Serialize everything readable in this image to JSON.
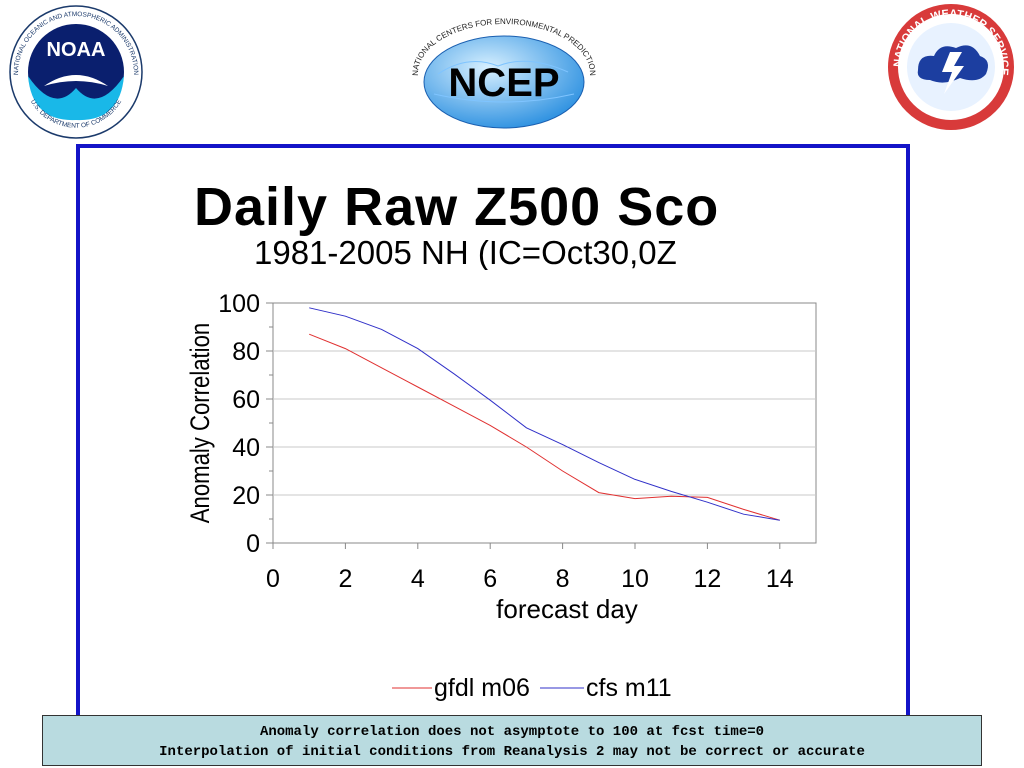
{
  "logos": {
    "noaa": {
      "name": "NOAA",
      "ring_text": "NATIONAL OCEANIC AND ATMOSPHERIC ADMINISTRATION",
      "bottom_text": "U.S. DEPARTMENT OF COMMERCE"
    },
    "ncep": {
      "name": "NCEP",
      "ring_text": "NATIONAL CENTERS FOR ENVIRONMENTAL PREDICTION"
    },
    "nws": {
      "ring_text": "NATIONAL WEATHER SERVICE"
    }
  },
  "colors": {
    "frame": "#1414c8",
    "note_bg": "#b9dbe0",
    "gfdl": "#e03030",
    "cfs": "#3030c8"
  },
  "chart_data": {
    "type": "line",
    "title": "Daily Raw Z500 Sco",
    "subtitle": "1981-2005 NH (IC=Oct30,0Z",
    "xlabel": "forecast day",
    "ylabel": "Anomaly Correlation",
    "xlim": [
      0,
      15
    ],
    "ylim": [
      0,
      100
    ],
    "x_ticks": [
      0,
      2,
      4,
      6,
      8,
      10,
      12,
      14
    ],
    "y_ticks": [
      0,
      20,
      40,
      60,
      80,
      100
    ],
    "grid": "horizontal",
    "legend_position": "bottom",
    "x": [
      1,
      2,
      3,
      4,
      5,
      6,
      7,
      8,
      9,
      10,
      11,
      12,
      13,
      14
    ],
    "series": [
      {
        "name": "gfdl m06",
        "color": "#e03030",
        "values": [
          87,
          81,
          73,
          65,
          57,
          49,
          40,
          30,
          21,
          18.5,
          19.5,
          19,
          14,
          9.5
        ]
      },
      {
        "name": "cfs m11",
        "color": "#3030c8",
        "values": [
          98,
          94.5,
          89,
          81,
          70.5,
          59.5,
          48,
          41,
          33.5,
          26.5,
          21.5,
          17,
          12,
          9.5
        ]
      }
    ]
  },
  "note": {
    "line1": "Anomaly correlation does not asymptote to 100 at fcst time=0",
    "line2": "Interpolation of initial conditions from Reanalysis 2 may not be correct or accurate"
  }
}
